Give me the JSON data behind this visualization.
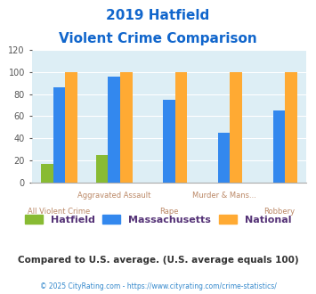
{
  "title_line1": "2019 Hatfield",
  "title_line2": "Violent Crime Comparison",
  "categories": [
    "All Violent Crime",
    "Aggravated Assault",
    "Rape",
    "Murder & Mans...",
    "Robbery"
  ],
  "hatfield": [
    17,
    25,
    0,
    0,
    0
  ],
  "massachusetts": [
    86,
    96,
    75,
    45,
    65
  ],
  "national": [
    100,
    100,
    100,
    100,
    100
  ],
  "colors": {
    "hatfield": "#88bb33",
    "massachusetts": "#3388ee",
    "national": "#ffaa33"
  },
  "ylim": [
    0,
    120
  ],
  "yticks": [
    0,
    20,
    40,
    60,
    80,
    100,
    120
  ],
  "title_color": "#1166cc",
  "xlabel_color_top": "#bb8866",
  "xlabel_color_bottom": "#bb8866",
  "footer_text": "Compared to U.S. average. (U.S. average equals 100)",
  "copyright_text": "© 2025 CityRating.com - https://www.cityrating.com/crime-statistics/",
  "footer_color": "#333333",
  "copyright_color": "#3388cc",
  "bg_color": "#ddeef5",
  "legend_labels": [
    "Hatfield",
    "Massachusetts",
    "National"
  ],
  "legend_text_color": "#553377"
}
